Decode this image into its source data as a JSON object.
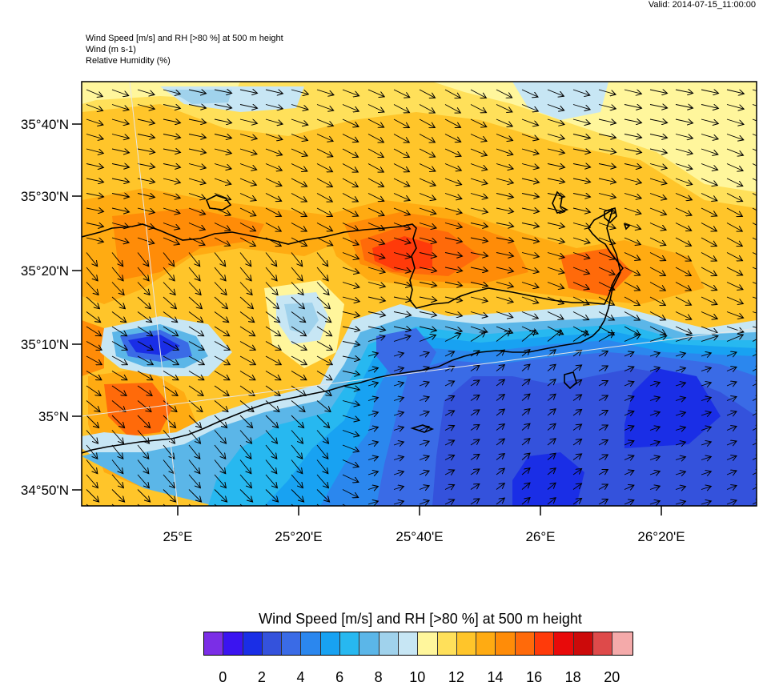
{
  "valid_text": "Valid: 2014-07-15_11:00:00",
  "header": {
    "line1": "Wind Speed [m/s] and RH [>80 %] at 500 m height",
    "line2": "Wind   (m s-1)",
    "line3": "Relative Humidity    (%)"
  },
  "map": {
    "lat_labels": [
      "35°40'N",
      "35°30'N",
      "35°20'N",
      "35°10'N",
      "35°N",
      "34°50'N"
    ],
    "lon_labels": [
      "25°E",
      "25°20'E",
      "25°40'E",
      "26°E",
      "26°20'E"
    ],
    "field": "wind speed (m/s)",
    "land": "Crete (coastline outline)"
  },
  "colorbar": {
    "title": "Wind Speed [m/s] and RH [>80 %] at 500 m height",
    "colors": [
      "#7b2ee6",
      "#3b14f0",
      "#1a2ee6",
      "#3452dc",
      "#3a6be6",
      "#2b87ee",
      "#18a2f2",
      "#27b8f0",
      "#5bb6e8",
      "#a0d2ec",
      "#c7e6f4",
      "#fff69c",
      "#ffe05a",
      "#ffc52a",
      "#ffab12",
      "#ff8c08",
      "#ff6a0a",
      "#ff3a0a",
      "#e80a0a",
      "#cc0a0a",
      "#de4a4a",
      "#f4aaaa"
    ],
    "tick_labels": [
      "0",
      "2",
      "4",
      "6",
      "8",
      "10",
      "12",
      "14",
      "16",
      "18",
      "20"
    ]
  }
}
